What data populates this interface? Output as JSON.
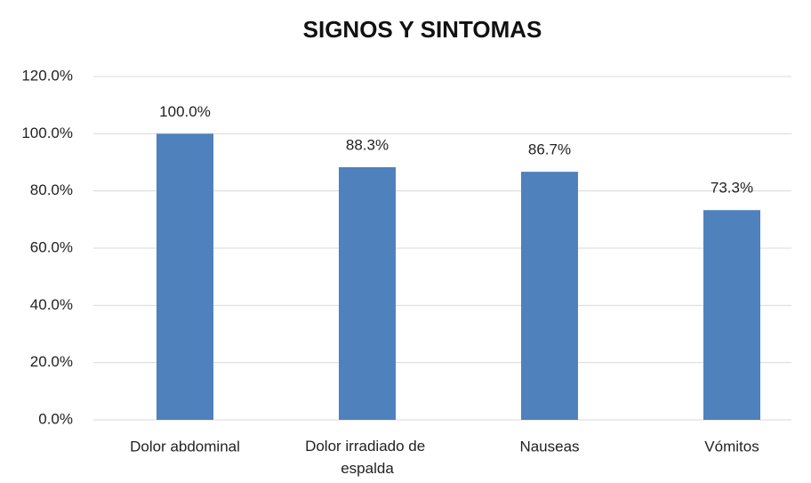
{
  "chart_data": {
    "type": "bar",
    "title": "SIGNOS Y SINTOMAS",
    "categories": [
      "Dolor abdominal",
      "Dolor irradiado de espalda",
      "Nauseas",
      "Vómitos"
    ],
    "values": [
      100,
      88.3,
      86.7,
      73.3
    ],
    "value_labels": [
      "100.0%",
      "88.3%",
      "86.7%",
      "73.3%"
    ],
    "color": "#4f81bd",
    "ylim": [
      0,
      120
    ],
    "yticks": [
      {
        "value": 0,
        "label": "0.0%"
      },
      {
        "value": 20,
        "label": "20.0%"
      },
      {
        "value": 40,
        "label": "40.0%"
      },
      {
        "value": 60,
        "label": "60.0%"
      },
      {
        "value": 80,
        "label": "80.0%"
      },
      {
        "value": 100,
        "label": "100.0%"
      },
      {
        "value": 120,
        "label": "120.0%"
      }
    ],
    "grid": true
  }
}
